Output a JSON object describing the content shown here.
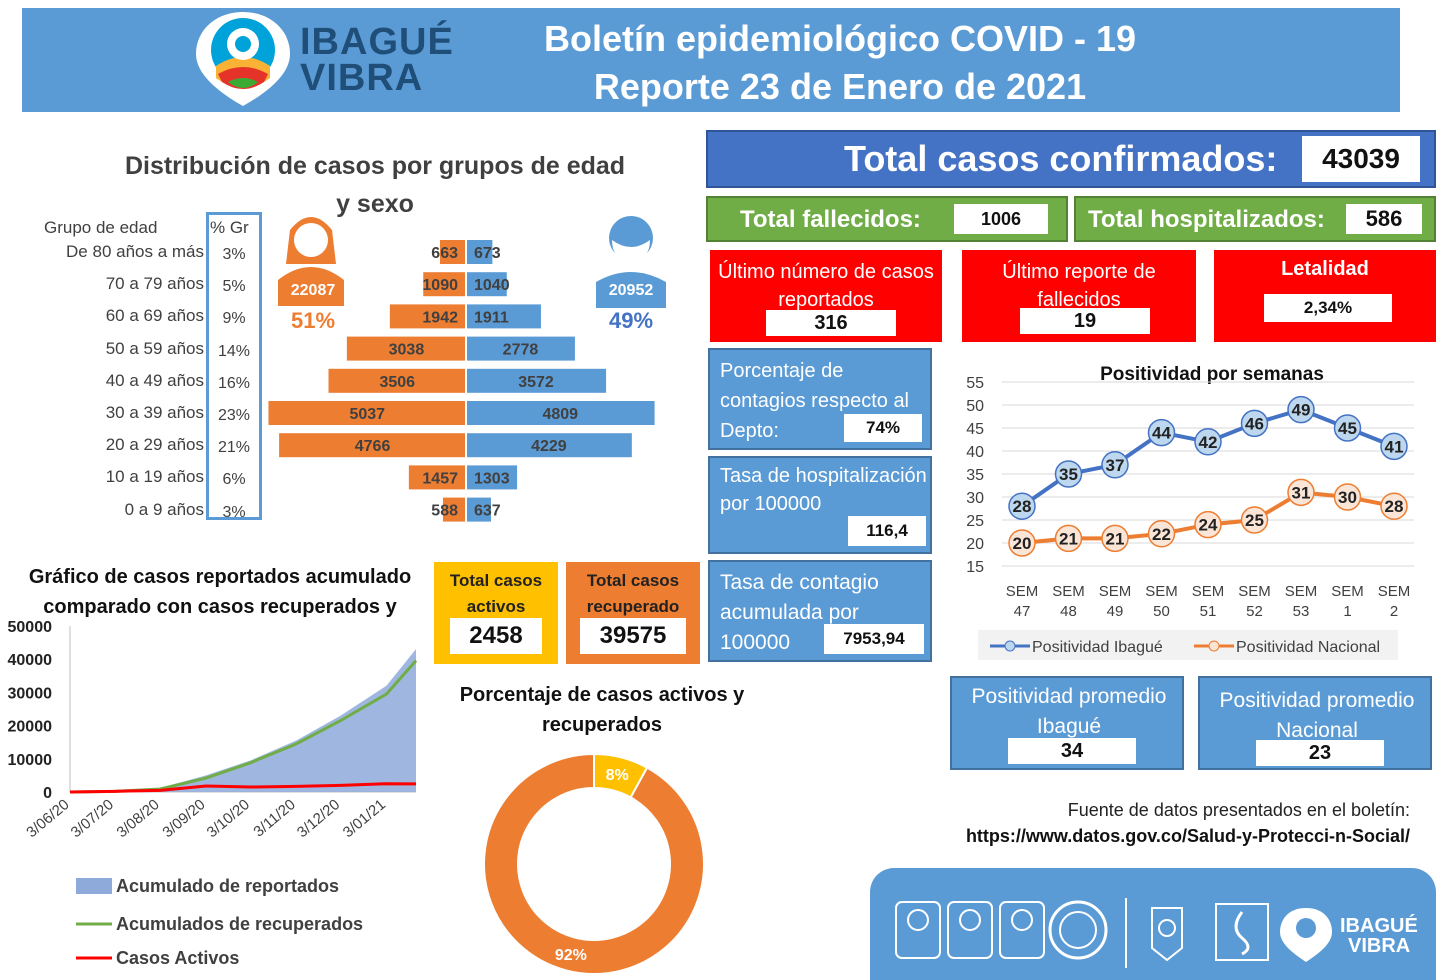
{
  "header": {
    "logo_text_line1": "IBAGUÉ",
    "logo_text_line2": "VIBRA",
    "title_line1": "Boletín epidemiológico COVID - 19",
    "title_line2": "Reporte 23 de Enero de 2021"
  },
  "totals": {
    "confirmed_label": "Total casos confirmados:",
    "confirmed_value": "43039",
    "deaths_label": "Total fallecidos:",
    "deaths_value": "1006",
    "hosp_label": "Total hospitalizados:",
    "hosp_value": "586"
  },
  "red_cards": [
    {
      "label": "Último número de casos reportados",
      "value": "316"
    },
    {
      "label": "Último reporte de fallecidos",
      "value": "19"
    },
    {
      "label": "Letalidad",
      "value": "2,34%"
    }
  ],
  "blue_cards": [
    {
      "label": "Porcentaje de contagios respecto al Depto:",
      "value": "74%"
    },
    {
      "label": "Tasa de hospitalización por 100000",
      "value": "116,4"
    },
    {
      "label": "Tasa de contagio acumulada por 100000",
      "value": "7953,94"
    }
  ],
  "avg_cards": [
    {
      "label": "Positividad promedio Ibagué",
      "value": "34"
    },
    {
      "label": "Positividad promedio Nacional",
      "value": "23"
    }
  ],
  "age_section": {
    "title_line1": "Distribución de casos por grupos de edad",
    "title_line2": "y sexo",
    "col_header_group": "Grupo de edad",
    "col_header_pct": "% Gr",
    "female_total": "22087",
    "female_pct": "51%",
    "male_total": "20952",
    "male_pct": "49%"
  },
  "active_recovered": {
    "active_label": "Total casos activos",
    "active_value": "2458",
    "recovered_label": "Total casos recuperado",
    "recovered_value": "39575"
  },
  "source": {
    "line1": "Fuente de datos presentados en el boletín:",
    "line2": "https://www.datos.gov.co/Salud-y-Protecci-n-Social/"
  },
  "colors": {
    "blue": "#5b9bd5",
    "orange": "#ed7d31",
    "green": "#70ad47",
    "red": "#ff0000",
    "yellow": "#ffc000"
  },
  "chart_data": [
    {
      "type": "bar",
      "orientation": "horizontal-pyramid",
      "categories": [
        "De 80 años a más",
        "70 a 79 años",
        "60 a 69 años",
        "50 a 59 años",
        "40 a 49 años",
        "30 a 39 años",
        "20 a 29 años",
        "10 a 19 años",
        "0 a 9 años"
      ],
      "group_pct": [
        "3%",
        "5%",
        "9%",
        "14%",
        "16%",
        "23%",
        "21%",
        "6%",
        "3%"
      ],
      "series": [
        {
          "values": [
            663,
            1090,
            1942,
            3038,
            3506,
            5037,
            4766,
            1457,
            588
          ]
        },
        {
          "values": [
            673,
            1040,
            1911,
            2778,
            3572,
            4809,
            4229,
            1303,
            637
          ]
        }
      ]
    },
    {
      "type": "line",
      "title": "Positividad por semanas",
      "categories": [
        "SEM 47",
        "SEM 48",
        "SEM 49",
        "SEM 50",
        "SEM 51",
        "SEM 52",
        "SEM 53",
        "SEM 1",
        "SEM 2"
      ],
      "series": [
        {
          "name": "Positividad Ibagué",
          "values": [
            28,
            35,
            37,
            44,
            42,
            46,
            49,
            45,
            41
          ]
        },
        {
          "name": "Positividad Nacional",
          "values": [
            20,
            21,
            21,
            22,
            24,
            25,
            31,
            30,
            28
          ]
        }
      ],
      "ylim": [
        15,
        55
      ],
      "yticks": [
        15,
        20,
        25,
        30,
        35,
        40,
        45,
        50,
        55
      ],
      "legend": "bottom",
      "grid": true
    },
    {
      "type": "area",
      "title": "Gráfico de casos reportados acumulado comparado con casos recuperados y",
      "x_ticks": [
        "3/06/20",
        "3/07/20",
        "3/08/20",
        "3/09/20",
        "3/10/20",
        "3/11/20",
        "3/12/20",
        "3/01/21"
      ],
      "yticks": [
        0,
        10000,
        20000,
        30000,
        40000,
        50000
      ],
      "ylim": [
        0,
        50000
      ],
      "x_dates": [
        "2020-06-03",
        "2020-07-03",
        "2020-08-03",
        "2020-09-03",
        "2020-10-03",
        "2020-11-03",
        "2020-12-03",
        "2021-01-03",
        "2021-01-23"
      ],
      "series": [
        {
          "name": "Acumulado de reportados",
          "values": [
            0,
            300,
            1200,
            5000,
            9500,
            15500,
            23000,
            32000,
            43039
          ]
        },
        {
          "name": "Acumulados de recuperados",
          "values": [
            0,
            200,
            900,
            4200,
            8800,
            14500,
            21500,
            29500,
            39575
          ]
        },
        {
          "name": "Casos Activos",
          "values": [
            0,
            200,
            500,
            1800,
            1500,
            1700,
            2000,
            2500,
            2458
          ]
        }
      ],
      "legend": "bottom"
    },
    {
      "type": "pie",
      "title": "Porcentaje de casos activos y recuperados",
      "slices": [
        {
          "label": "92%",
          "value": 92
        },
        {
          "label": "8%",
          "value": 8
        }
      ]
    }
  ]
}
